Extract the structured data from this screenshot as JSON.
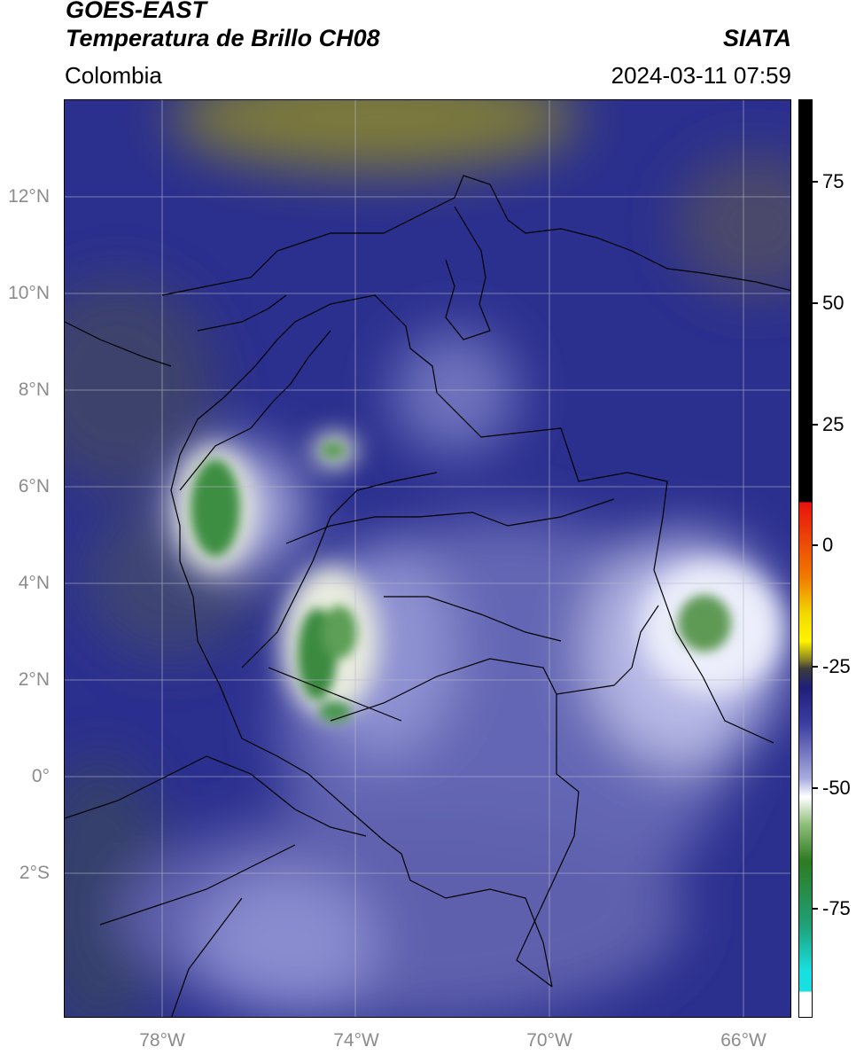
{
  "header": {
    "satellite": "GOES-EAST",
    "product": "Temperatura de Brillo CH08",
    "agency": "SIATA",
    "region": "Colombia",
    "timestamp": "2024-03-11 07:59"
  },
  "map": {
    "lat_range": [
      -5.0,
      14.0
    ],
    "lon_range": [
      -80.0,
      -65.0
    ],
    "lat_labels": [
      {
        "value": 12,
        "text": "12°N"
      },
      {
        "value": 10,
        "text": "10°N"
      },
      {
        "value": 8,
        "text": "8°N"
      },
      {
        "value": 6,
        "text": "6°N"
      },
      {
        "value": 4,
        "text": "4°N"
      },
      {
        "value": 2,
        "text": "2°N"
      },
      {
        "value": 0,
        "text": "0°"
      },
      {
        "value": -2,
        "text": "2°S"
      }
    ],
    "lon_labels": [
      {
        "value": -78,
        "text": "78°W"
      },
      {
        "value": -74,
        "text": "74°W"
      },
      {
        "value": -70,
        "text": "70°W"
      },
      {
        "value": -66,
        "text": "66°W"
      }
    ],
    "background_color": "#2a2f8f",
    "cold_cloud_color": "#3c8f3a",
    "border_color": "#000000"
  },
  "colorbar": {
    "range": [
      -96,
      90
    ],
    "ticks": [
      {
        "value": 75,
        "text": "75"
      },
      {
        "value": 50,
        "text": "50"
      },
      {
        "value": 25,
        "text": "25"
      },
      {
        "value": 0,
        "text": "0"
      },
      {
        "value": -25,
        "text": "-25"
      },
      {
        "value": -50,
        "text": "-50"
      },
      {
        "value": -75,
        "text": "-75"
      }
    ]
  }
}
